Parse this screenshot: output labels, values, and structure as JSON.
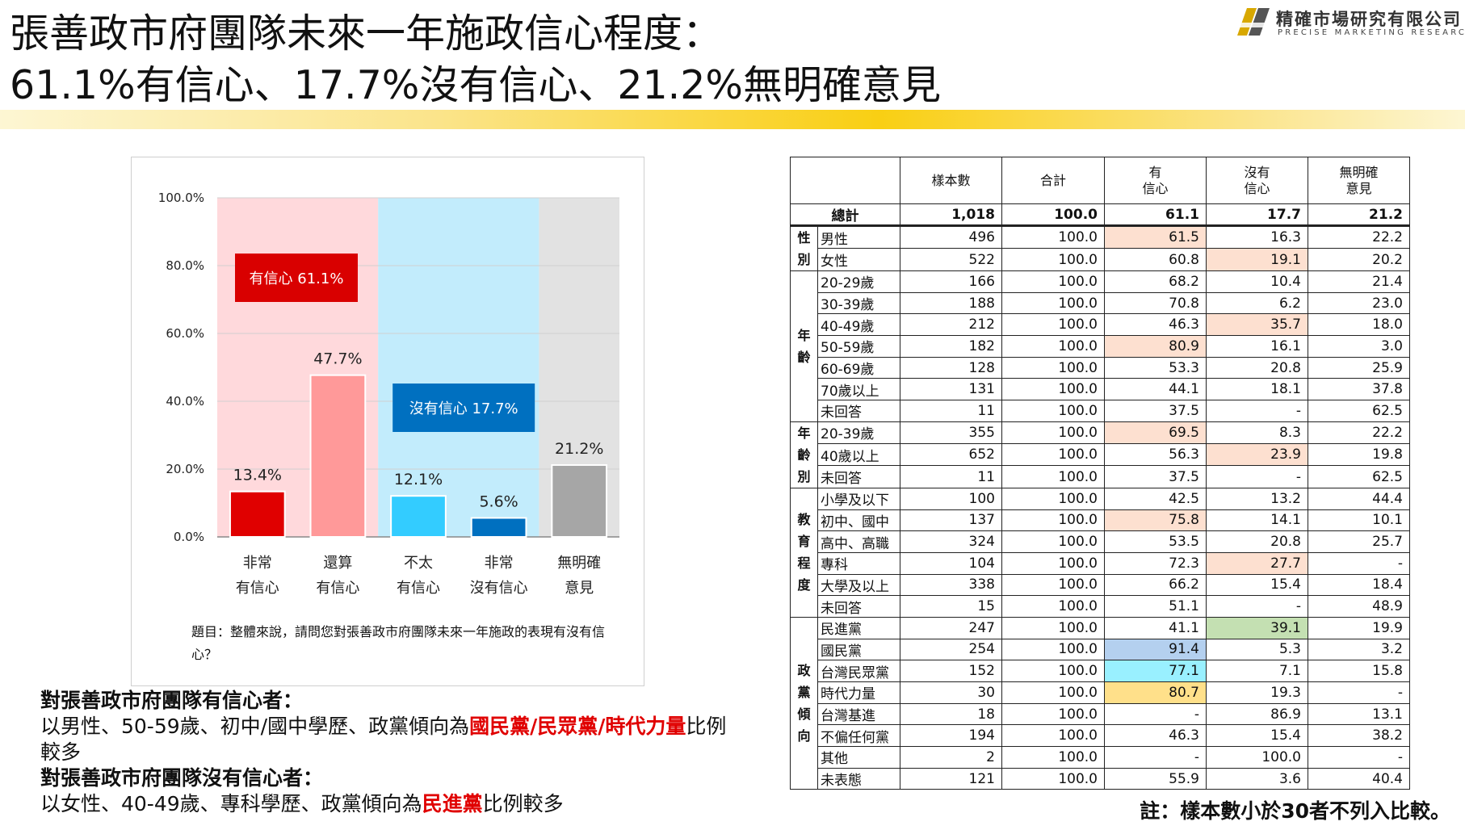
{
  "title": {
    "line1": "張善政市府團隊未來一年施政信心程度：",
    "line2": "61.1%有信心、17.7%沒有信心、21.2%無明確意見"
  },
  "logo": {
    "name_cn": "精確市場研究有限公司",
    "name_en": "PRECISE MARKETING RESEARCH"
  },
  "chart_data": {
    "type": "bar",
    "ylim": [
      0,
      100
    ],
    "yticks": [
      "100.0%",
      "80.0%",
      "60.0%",
      "40.0%",
      "20.0%",
      "0.0%"
    ],
    "categories": [
      [
        "非常",
        "有信心"
      ],
      [
        "還算",
        "有信心"
      ],
      [
        "不太",
        "有信心"
      ],
      [
        "非常",
        "沒有信心"
      ],
      [
        "無明確",
        "意見"
      ]
    ],
    "values": [
      13.4,
      47.7,
      12.1,
      5.6,
      21.2
    ],
    "value_labels": [
      "13.4%",
      "47.7%",
      "12.1%",
      "5.6%",
      "21.2%"
    ],
    "bar_colors": [
      "#e00000",
      "#ff9999",
      "#33ccff",
      "#0070c0",
      "#a6a6a6"
    ],
    "band_colors": [
      "#ffd9dc",
      "#c2ecfc",
      "#e2e2e2"
    ],
    "group_labels": [
      {
        "text": "有信心 61.1%",
        "color": "#d90000"
      },
      {
        "text": "沒有信心 17.7%",
        "color": "#0070c0"
      }
    ]
  },
  "chart_note": "題目：整體來說，請問您對張善政市府團隊未來一年施政的表現有沒有信心？",
  "table": {
    "headers": [
      "樣本數",
      "合計",
      "有\n信心",
      "沒有\n信心",
      "無明確\n意見"
    ],
    "total": {
      "label": "總計",
      "values": [
        "1,018",
        "100.0",
        "61.1",
        "17.7",
        "21.2"
      ]
    },
    "highlight_colors": {
      "peach": "#fde0d0",
      "green": "#c4e0b2",
      "blue": "#b4d0ef",
      "cyan": "#99f0ff",
      "yellow": "#ffe08a"
    },
    "groups": [
      {
        "name": "性別",
        "rows": [
          {
            "label": "男性",
            "values": [
              "496",
              "100.0",
              "61.5",
              "16.3",
              "22.2"
            ],
            "hl": [
              null,
              null,
              "peach",
              null,
              null
            ]
          },
          {
            "label": "女性",
            "values": [
              "522",
              "100.0",
              "60.8",
              "19.1",
              "20.2"
            ],
            "hl": [
              null,
              null,
              null,
              "peach",
              null
            ]
          }
        ]
      },
      {
        "name": "年齡",
        "rows": [
          {
            "label": "20-29歲",
            "values": [
              "166",
              "100.0",
              "68.2",
              "10.4",
              "21.4"
            ],
            "hl": []
          },
          {
            "label": "30-39歲",
            "values": [
              "188",
              "100.0",
              "70.8",
              "6.2",
              "23.0"
            ],
            "hl": []
          },
          {
            "label": "40-49歲",
            "values": [
              "212",
              "100.0",
              "46.3",
              "35.7",
              "18.0"
            ],
            "hl": [
              null,
              null,
              null,
              "peach",
              null
            ]
          },
          {
            "label": "50-59歲",
            "values": [
              "182",
              "100.0",
              "80.9",
              "16.1",
              "3.0"
            ],
            "hl": [
              null,
              null,
              "peach",
              null,
              null
            ]
          },
          {
            "label": "60-69歲",
            "values": [
              "128",
              "100.0",
              "53.3",
              "20.8",
              "25.9"
            ],
            "hl": []
          },
          {
            "label": "70歲以上",
            "values": [
              "131",
              "100.0",
              "44.1",
              "18.1",
              "37.8"
            ],
            "hl": []
          },
          {
            "label": "未回答",
            "values": [
              "11",
              "100.0",
              "37.5",
              "-",
              "62.5"
            ],
            "hl": []
          }
        ]
      },
      {
        "name": "年齡別",
        "rows": [
          {
            "label": "20-39歲",
            "values": [
              "355",
              "100.0",
              "69.5",
              "8.3",
              "22.2"
            ],
            "hl": [
              null,
              null,
              "peach",
              null,
              null
            ]
          },
          {
            "label": "40歲以上",
            "values": [
              "652",
              "100.0",
              "56.3",
              "23.9",
              "19.8"
            ],
            "hl": [
              null,
              null,
              null,
              "peach",
              null
            ]
          },
          {
            "label": "未回答",
            "values": [
              "11",
              "100.0",
              "37.5",
              "-",
              "62.5"
            ],
            "hl": []
          }
        ]
      },
      {
        "name": "教育程度",
        "rows": [
          {
            "label": "小學及以下",
            "values": [
              "100",
              "100.0",
              "42.5",
              "13.2",
              "44.4"
            ],
            "hl": []
          },
          {
            "label": "初中、國中",
            "values": [
              "137",
              "100.0",
              "75.8",
              "14.1",
              "10.1"
            ],
            "hl": [
              null,
              null,
              "peach",
              null,
              null
            ]
          },
          {
            "label": "高中、高職",
            "values": [
              "324",
              "100.0",
              "53.5",
              "20.8",
              "25.7"
            ],
            "hl": []
          },
          {
            "label": "專科",
            "values": [
              "104",
              "100.0",
              "72.3",
              "27.7",
              "-"
            ],
            "hl": [
              null,
              null,
              null,
              "peach",
              null
            ]
          },
          {
            "label": "大學及以上",
            "values": [
              "338",
              "100.0",
              "66.2",
              "15.4",
              "18.4"
            ],
            "hl": []
          },
          {
            "label": "未回答",
            "values": [
              "15",
              "100.0",
              "51.1",
              "-",
              "48.9"
            ],
            "hl": []
          }
        ]
      },
      {
        "name": "政黨傾向",
        "rows": [
          {
            "label": "民進黨",
            "values": [
              "247",
              "100.0",
              "41.1",
              "39.1",
              "19.9"
            ],
            "hl": [
              null,
              null,
              null,
              "green",
              null
            ]
          },
          {
            "label": "國民黨",
            "values": [
              "254",
              "100.0",
              "91.4",
              "5.3",
              "3.2"
            ],
            "hl": [
              null,
              null,
              "blue",
              null,
              null
            ]
          },
          {
            "label": "台灣民眾黨",
            "values": [
              "152",
              "100.0",
              "77.1",
              "7.1",
              "15.8"
            ],
            "hl": [
              null,
              null,
              "cyan",
              null,
              null
            ]
          },
          {
            "label": "時代力量",
            "values": [
              "30",
              "100.0",
              "80.7",
              "19.3",
              "-"
            ],
            "hl": [
              null,
              null,
              "yellow",
              null,
              null
            ]
          },
          {
            "label": "台灣基進",
            "values": [
              "18",
              "100.0",
              "-",
              "86.9",
              "13.1"
            ],
            "hl": []
          },
          {
            "label": "不偏任何黨",
            "values": [
              "194",
              "100.0",
              "46.3",
              "15.4",
              "38.2"
            ],
            "hl": []
          },
          {
            "label": "其他",
            "values": [
              "2",
              "100.0",
              "-",
              "100.0",
              "-"
            ],
            "hl": []
          },
          {
            "label": "未表態",
            "values": [
              "121",
              "100.0",
              "55.9",
              "3.6",
              "40.4"
            ],
            "hl": []
          }
        ]
      }
    ]
  },
  "summary": {
    "heading1": "對張善政市府團隊有信心者：",
    "text1_pre": "以男性、50-59歲、初中/國中學歷、政黨傾向為",
    "text1_red": "國民黨/民眾黨/時代力量",
    "text1_post": "比例",
    "text1_line2": "較多",
    "heading2": "對張善政市府團隊沒有信心者：",
    "text2_pre": "以女性、40-49歲、專科學歷、政黨傾向為",
    "text2_red": "民進黨",
    "text2_post": "比例較多"
  },
  "footnote": "註：樣本數小於30者不列入比較。"
}
